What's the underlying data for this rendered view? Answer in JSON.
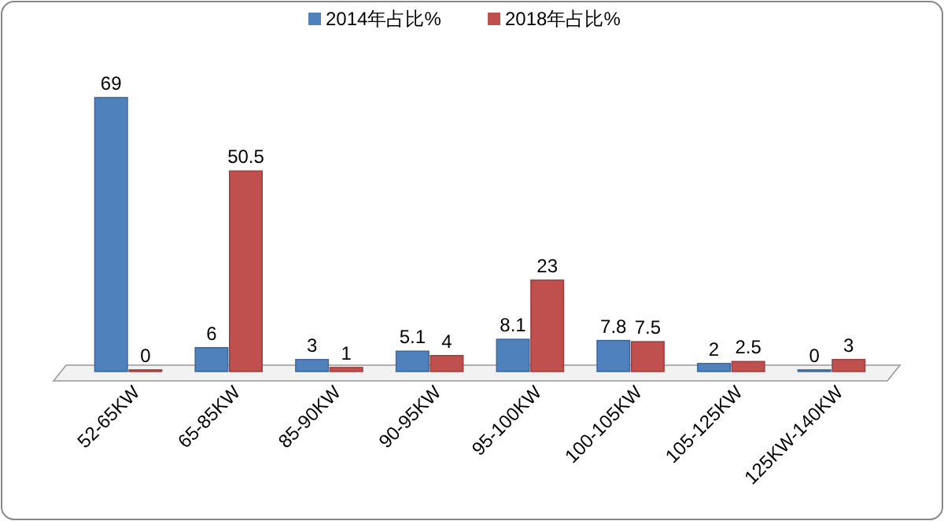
{
  "chart_data": {
    "type": "bar",
    "categories": [
      "52-65KW",
      "65-85KW",
      "85-90KW",
      "90-95KW",
      "95-100KW",
      "100-105KW",
      "105-125KW",
      "125KW-140KW"
    ],
    "series": [
      {
        "name": "2014年占比%",
        "color": "#4f81bd",
        "values": [
          69,
          6,
          3,
          5.1,
          8.1,
          7.8,
          2,
          0
        ]
      },
      {
        "name": "2018年占比%",
        "color": "#c0504d",
        "values": [
          0,
          50.5,
          1,
          4,
          23,
          7.5,
          2.5,
          3
        ]
      }
    ],
    "data_labels": true,
    "legend": "top",
    "grid": false
  }
}
